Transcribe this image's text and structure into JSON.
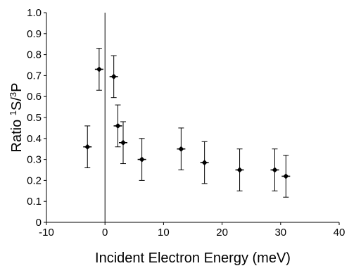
{
  "chart_data": {
    "type": "scatter",
    "title": "",
    "xlabel": "Incident Electron Energy (meV)",
    "ylabel": {
      "prefix": "Ratio ",
      "sup1": "1",
      "mid": "S/",
      "sup2": "3",
      "suffix": "P"
    },
    "xlim": [
      -10,
      40
    ],
    "ylim": [
      0,
      1
    ],
    "x_ticks": [
      -10,
      0,
      10,
      20,
      30,
      40
    ],
    "x_tick_labels": [
      "-10",
      "0",
      "10",
      "20",
      "30",
      "40"
    ],
    "y_ticks": [
      0,
      0.1,
      0.2,
      0.3,
      0.4,
      0.5,
      0.6,
      0.7,
      0.8,
      0.9,
      1.0
    ],
    "y_tick_labels": [
      "0",
      "0.1",
      "0.2",
      "0.3",
      "0.4",
      "0.5",
      "0.6",
      "0.7",
      "0.8",
      "0.9",
      "1.0"
    ],
    "grid": false,
    "legend": false,
    "series": [
      {
        "points": [
          {
            "x": -3.0,
            "y": 0.36,
            "yerr": 0.1
          },
          {
            "x": -1.0,
            "y": 0.73,
            "yerr": 0.1
          },
          {
            "x": 1.5,
            "y": 0.695,
            "yerr": 0.1
          },
          {
            "x": 2.2,
            "y": 0.46,
            "yerr": 0.1
          },
          {
            "x": 3.1,
            "y": 0.38,
            "yerr": 0.1
          },
          {
            "x": 6.3,
            "y": 0.3,
            "yerr": 0.1
          },
          {
            "x": 13.0,
            "y": 0.35,
            "yerr": 0.1
          },
          {
            "x": 17.0,
            "y": 0.285,
            "yerr": 0.1
          },
          {
            "x": 23.0,
            "y": 0.25,
            "yerr": 0.1
          },
          {
            "x": 29.0,
            "y": 0.25,
            "yerr": 0.1
          },
          {
            "x": 30.9,
            "y": 0.22,
            "yerr": 0.1
          }
        ]
      }
    ]
  }
}
